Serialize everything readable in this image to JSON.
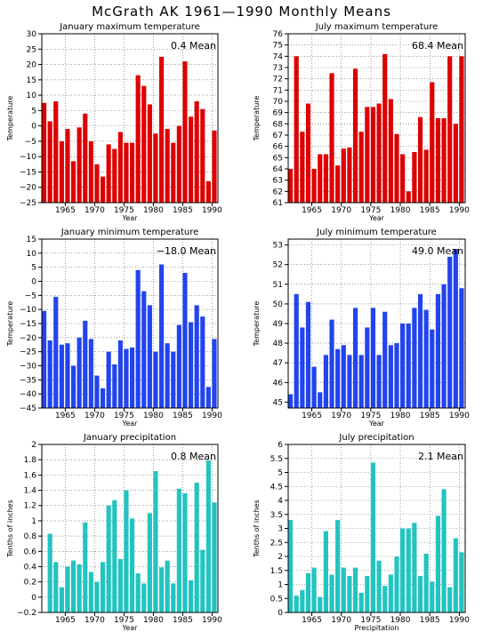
{
  "title": "McGrath AK   1961—1990 Monthly Means",
  "chart_data": [
    {
      "type": "bar",
      "title": "January maximum temperature",
      "xlabel": "Year",
      "ylabel": "Temperature",
      "annotation": "0.4 Mean",
      "color": "#dd0000",
      "xlim": [
        1961,
        1990
      ],
      "x": [
        1961,
        1962,
        1963,
        1964,
        1965,
        1966,
        1967,
        1968,
        1969,
        1970,
        1971,
        1972,
        1973,
        1974,
        1975,
        1976,
        1977,
        1978,
        1979,
        1980,
        1981,
        1982,
        1983,
        1984,
        1985,
        1986,
        1987,
        1988,
        1989,
        1990
      ],
      "values": [
        7.5,
        1.5,
        8,
        -5,
        -1,
        -11.5,
        -0.5,
        4,
        -5,
        -12.5,
        -16.5,
        -6,
        -7.5,
        -2,
        -5.5,
        -5.5,
        16.5,
        13,
        7,
        -2.5,
        22.5,
        -1,
        -5.5,
        0,
        21,
        3,
        8,
        5.5,
        -18,
        -1.5
      ],
      "ylim": [
        -25,
        30
      ],
      "yticks": [
        -25,
        -20,
        -15,
        -10,
        -5,
        0,
        5,
        10,
        15,
        20,
        25,
        30
      ],
      "xticks": [
        1965,
        1970,
        1975,
        1980,
        1985,
        1990
      ],
      "grid": true
    },
    {
      "type": "bar",
      "title": "July maximum temperature",
      "xlabel": "Year",
      "ylabel": "Temperature",
      "annotation": "68.4 Mean",
      "color": "#dd0000",
      "xlim": [
        1961,
        1990
      ],
      "x": [
        1961,
        1962,
        1963,
        1964,
        1965,
        1966,
        1967,
        1968,
        1969,
        1970,
        1971,
        1972,
        1973,
        1974,
        1975,
        1976,
        1977,
        1978,
        1979,
        1980,
        1981,
        1982,
        1983,
        1984,
        1985,
        1986,
        1987,
        1988,
        1989,
        1990
      ],
      "values": [
        64,
        74,
        67.3,
        69.8,
        64,
        65.3,
        65.3,
        72.5,
        64.3,
        65.8,
        65.9,
        72.9,
        67.3,
        69.5,
        69.5,
        69.8,
        74.2,
        70.2,
        67.1,
        65.3,
        62,
        65.5,
        68.6,
        65.7,
        71.7,
        68.5,
        68.5,
        74,
        68,
        74
      ],
      "ylim": [
        61,
        76
      ],
      "yticks": [
        61,
        62,
        63,
        64,
        65,
        66,
        67,
        68,
        69,
        70,
        71,
        72,
        73,
        74,
        75,
        76
      ],
      "xticks": [
        1965,
        1970,
        1975,
        1980,
        1985,
        1990
      ],
      "grid": true
    },
    {
      "type": "bar",
      "title": "January minimum temperature",
      "xlabel": "Year",
      "ylabel": "Temperature",
      "annotation": "−18.0 Mean",
      "color": "#2244ee",
      "xlim": [
        1961,
        1990
      ],
      "x": [
        1961,
        1962,
        1963,
        1964,
        1965,
        1966,
        1967,
        1968,
        1969,
        1970,
        1971,
        1972,
        1973,
        1974,
        1975,
        1976,
        1977,
        1978,
        1979,
        1980,
        1981,
        1982,
        1983,
        1984,
        1985,
        1986,
        1987,
        1988,
        1989,
        1990
      ],
      "values": [
        -10.5,
        -21,
        -5.5,
        -22.5,
        -22,
        -30,
        -20,
        -14,
        -20.5,
        -33.5,
        -38,
        -25,
        -29.5,
        -21,
        -24,
        -23.5,
        4,
        -3.5,
        -8.5,
        -25,
        6,
        -22,
        -25,
        -15.5,
        3,
        -14.5,
        -8.5,
        -12.5,
        -37.5,
        -20.5
      ],
      "ylim": [
        -45,
        15
      ],
      "yticks": [
        -45,
        -40,
        -35,
        -30,
        -25,
        -20,
        -15,
        -10,
        -5,
        0,
        5,
        10,
        15
      ],
      "xticks": [
        1965,
        1970,
        1975,
        1980,
        1985,
        1990
      ],
      "grid": true
    },
    {
      "type": "bar",
      "title": "July minimum temperature",
      "xlabel": "Year",
      "ylabel": "Temperature",
      "annotation": "49.0 Mean",
      "color": "#2244ee",
      "xlim": [
        1961,
        1990
      ],
      "x": [
        1961,
        1962,
        1963,
        1964,
        1965,
        1966,
        1967,
        1968,
        1969,
        1970,
        1971,
        1972,
        1973,
        1974,
        1975,
        1976,
        1977,
        1978,
        1979,
        1980,
        1981,
        1982,
        1983,
        1984,
        1985,
        1986,
        1987,
        1988,
        1989,
        1990
      ],
      "values": [
        45.4,
        50.5,
        48.8,
        50.1,
        46.8,
        45.5,
        47.4,
        49.2,
        47.7,
        47.9,
        47.4,
        49.8,
        47.4,
        48.8,
        49.8,
        47.4,
        49.6,
        47.9,
        48.0,
        49.0,
        49.0,
        49.8,
        50.5,
        49.7,
        48.7,
        50.5,
        51.0,
        52.4,
        52.8,
        50.8
      ],
      "ylim": [
        44.7,
        53.3
      ],
      "yticks": [
        45,
        46,
        47,
        48,
        49,
        50,
        51,
        52,
        53
      ],
      "xticks": [
        1965,
        1970,
        1975,
        1980,
        1985,
        1990
      ],
      "grid": true
    },
    {
      "type": "bar",
      "title": "January precipitation",
      "xlabel": "Year",
      "ylabel": "Tenths of inches",
      "annotation": "0.8 Mean",
      "color": "#22c4c0",
      "xlim": [
        1961,
        1990
      ],
      "x": [
        1961,
        1962,
        1963,
        1964,
        1965,
        1966,
        1967,
        1968,
        1969,
        1970,
        1971,
        1972,
        1973,
        1974,
        1975,
        1976,
        1977,
        1978,
        1979,
        1980,
        1981,
        1982,
        1983,
        1984,
        1985,
        1986,
        1987,
        1988,
        1989,
        1990
      ],
      "values": [
        -0.2,
        0.83,
        0.46,
        0.13,
        0.4,
        0.48,
        0.43,
        0.98,
        0.33,
        0.2,
        0.46,
        1.2,
        1.27,
        0.5,
        1.4,
        1.03,
        0.31,
        0.18,
        1.1,
        1.65,
        0.39,
        0.48,
        0.18,
        1.42,
        1.36,
        0.22,
        1.5,
        0.62,
        1.79,
        1.24
      ],
      "ylim": [
        -0.2,
        2
      ],
      "yticks": [
        -0.2,
        0,
        0.2,
        0.4,
        0.6,
        0.8,
        1,
        1.2,
        1.4,
        1.6,
        1.8,
        2
      ],
      "xticks": [
        1965,
        1970,
        1975,
        1980,
        1985,
        1990
      ],
      "grid": true
    },
    {
      "type": "bar",
      "title": "July precipitation",
      "xlabel": "Precipitation",
      "ylabel": "Tenths of inches",
      "annotation": "2.1 Mean",
      "color": "#22c4c0",
      "xlim": [
        1961,
        1990
      ],
      "x": [
        1961,
        1962,
        1963,
        1964,
        1965,
        1966,
        1967,
        1968,
        1969,
        1970,
        1971,
        1972,
        1973,
        1974,
        1975,
        1976,
        1977,
        1978,
        1979,
        1980,
        1981,
        1982,
        1983,
        1984,
        1985,
        1986,
        1987,
        1988,
        1989,
        1990
      ],
      "values": [
        3.3,
        0.6,
        0.8,
        1.4,
        1.6,
        0.55,
        2.9,
        1.35,
        3.3,
        1.6,
        1.3,
        1.6,
        0.7,
        1.3,
        5.35,
        1.85,
        0.95,
        1.35,
        2,
        3,
        3,
        3.2,
        1.3,
        2.1,
        1.1,
        3.45,
        4.4,
        0.9,
        2.65,
        2.15
      ],
      "ylim": [
        0,
        6
      ],
      "yticks": [
        0,
        0.5,
        1,
        1.5,
        2,
        2.5,
        3,
        3.5,
        4,
        4.5,
        5,
        5.5,
        6
      ],
      "xticks": [
        1965,
        1970,
        1975,
        1980,
        1985,
        1990
      ],
      "grid": true
    }
  ]
}
